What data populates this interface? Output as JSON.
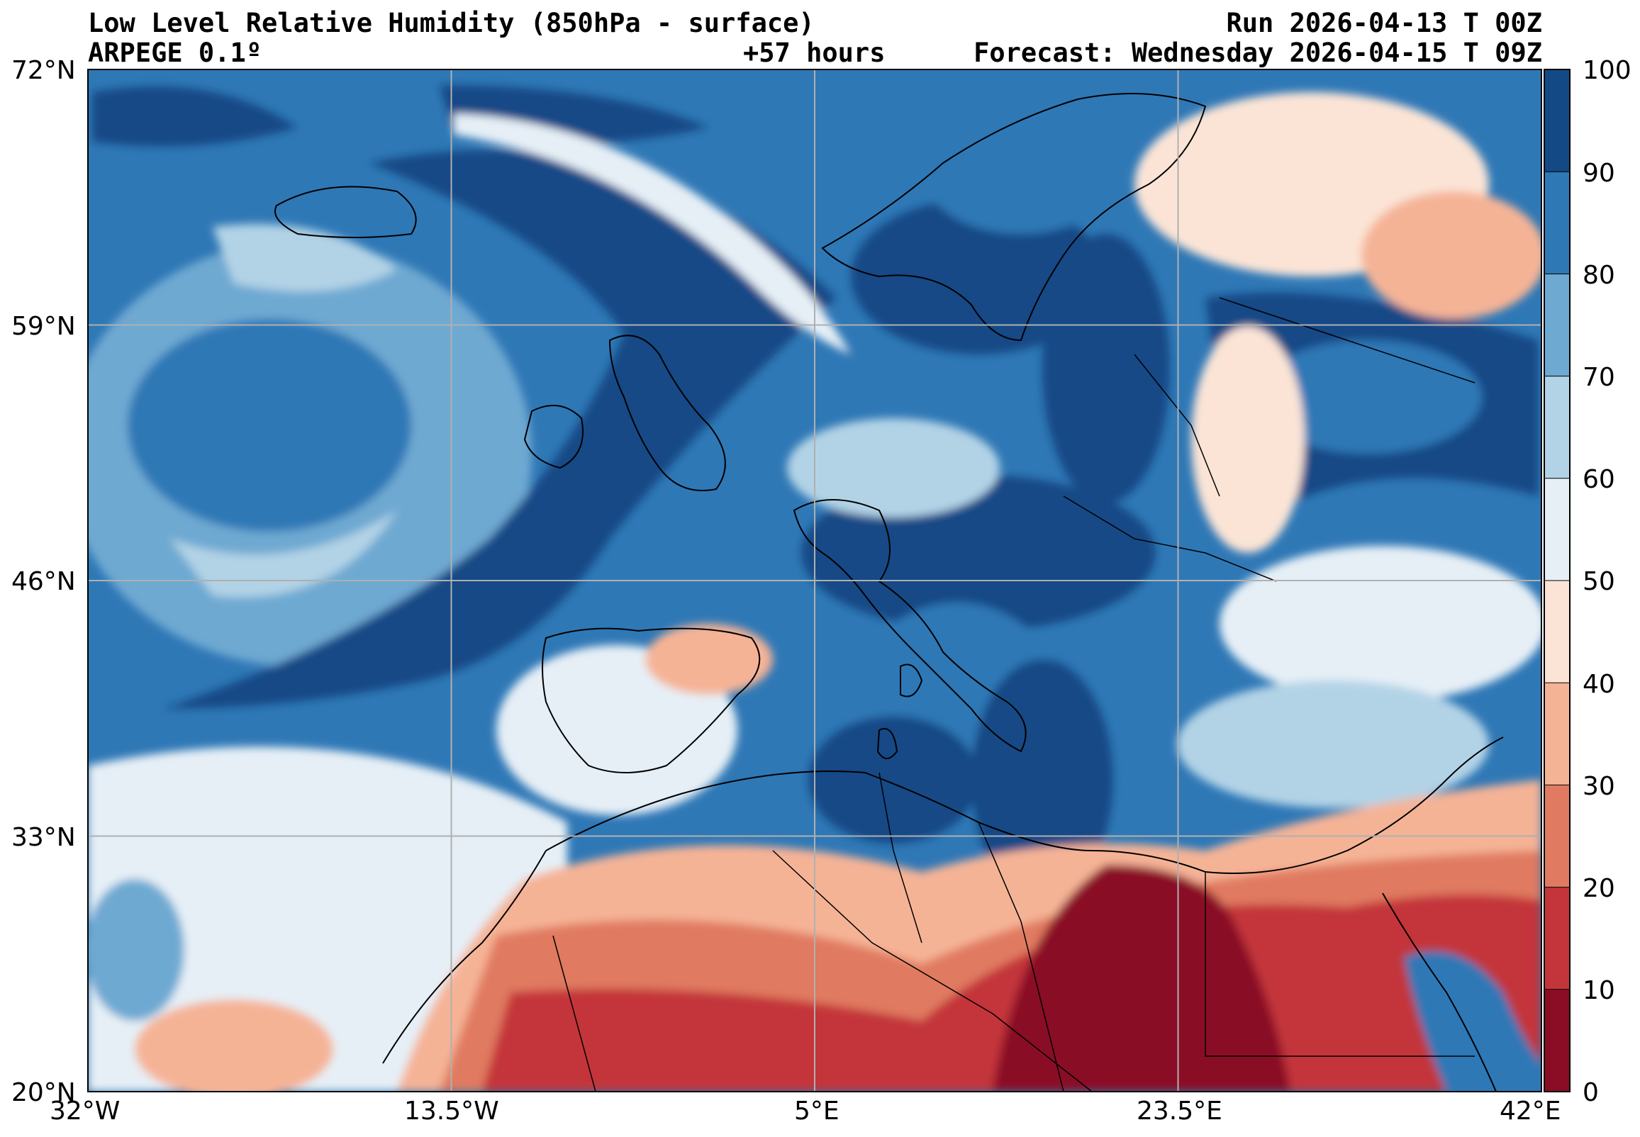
{
  "header": {
    "title": "Low Level Relative Humidity (850hPa - surface)",
    "model": "ARPEGE 0.1º",
    "lead": "+57 hours",
    "run": "Run 2026-04-13 T 00Z",
    "forecast": "Forecast: Wednesday 2026-04-15 T 09Z"
  },
  "map": {
    "lon_range": [
      -32,
      42
    ],
    "lat_range": [
      20,
      72
    ],
    "lon_ticks": [
      "32°W",
      "13.5°W",
      "5°E",
      "23.5°E",
      "42°E"
    ],
    "lat_ticks": [
      "72°N",
      "59°N",
      "46°N",
      "33°N",
      "20°N"
    ],
    "grid": true
  },
  "colorbar": {
    "levels": [
      "0",
      "10",
      "20",
      "30",
      "40",
      "50",
      "60",
      "70",
      "80",
      "90",
      "100"
    ],
    "colors": [
      "#8a0d25",
      "#c3353a",
      "#e07a60",
      "#f5b396",
      "#fbe4d6",
      "#e6eff6",
      "#b2d3e6",
      "#6ea9d2",
      "#2f78b6",
      "#134a86"
    ]
  }
}
